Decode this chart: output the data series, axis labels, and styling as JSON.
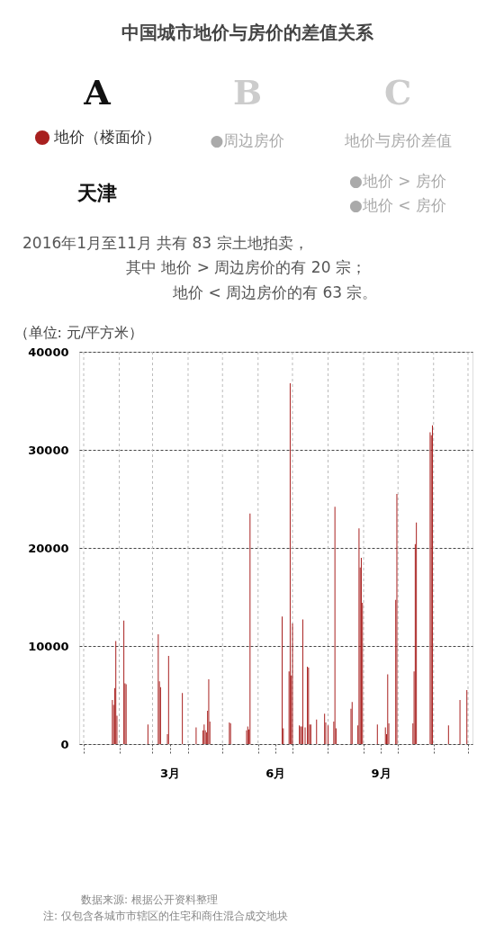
{
  "chart_data": {
    "type": "bar",
    "title": "中国城市地价与房价的差值关系",
    "subtitle": "天津",
    "ylabel": "（单位: 元/平方米）",
    "annotations": [
      "A",
      "B",
      "C",
      "●周边房价",
      "地价与房价差值",
      "●地价 > 房价",
      "●地价 < 房价",
      "2016年1月至11月   共有  83  宗土地拍卖，",
      "其中   地价 > 周边房价的有  20  宗；",
      "地价 < 周边房价的有  63  宗。",
      "数据来源: 根据公开资料整理",
      "注: 仅包含各城市市辖区的住宅和商住混合成交地块"
    ],
    "x": [
      "2016-01-26",
      "2016-01-27",
      "2016-01-28",
      "2016-01-29",
      "2016-01-30",
      "2016-02-05",
      "2016-02-06",
      "2016-02-07",
      "2016-02-26",
      "2016-03-06",
      "2016-03-07",
      "2016-03-08",
      "2016-03-14",
      "2016-03-15",
      "2016-03-27",
      "2016-04-08",
      "2016-04-14",
      "2016-04-15",
      "2016-04-16",
      "2016-04-17",
      "2016-04-18",
      "2016-04-19",
      "2016-04-20",
      "2016-05-07",
      "2016-05-08",
      "2016-05-22",
      "2016-05-23",
      "2016-05-24",
      "2016-05-25",
      "2016-06-22",
      "2016-06-23",
      "2016-06-28",
      "2016-06-29",
      "2016-06-30",
      "2016-07-01",
      "2016-07-07",
      "2016-07-08",
      "2016-07-09",
      "2016-07-10",
      "2016-07-12",
      "2016-07-14",
      "2016-07-15",
      "2016-07-16",
      "2016-07-17",
      "2016-07-22",
      "2016-07-29",
      "2016-07-30",
      "2016-08-01",
      "2016-08-06",
      "2016-08-07",
      "2016-08-08",
      "2016-08-21",
      "2016-08-22",
      "2016-08-27",
      "2016-08-28",
      "2016-08-29",
      "2016-08-30",
      "2016-08-31",
      "2016-09-13",
      "2016-09-20",
      "2016-09-21",
      "2016-09-22",
      "2016-09-23",
      "2016-09-29",
      "2016-09-30",
      "2016-10-14",
      "2016-10-15",
      "2016-10-16",
      "2016-10-17",
      "2016-10-29",
      "2016-10-30",
      "2016-10-31",
      "2016-11-14",
      "2016-11-24",
      "2016-11-30"
    ],
    "series": [
      {
        "name": "地价（楼面价）",
        "color": "#a8201f",
        "values": [
          4500,
          4000,
          5700,
          10500,
          2900,
          12600,
          6200,
          6100,
          2000,
          11200,
          6400,
          5800,
          1000,
          9000,
          5200,
          1700,
          1400,
          2000,
          1400,
          1200,
          3400,
          6600,
          2300,
          2200,
          2100,
          1400,
          1800,
          1500,
          23500,
          13000,
          1600,
          7400,
          36800,
          7000,
          12300,
          1900,
          1800,
          1800,
          12700,
          1700,
          7900,
          7800,
          2000,
          2000,
          2500,
          3100,
          2200,
          1900,
          2300,
          24200,
          1600,
          3600,
          4300,
          1900,
          22000,
          18000,
          19000,
          14400,
          2000,
          1700,
          1000,
          7100,
          2100,
          14700,
          25500,
          2100,
          7400,
          20400,
          22600,
          31800,
          31500,
          32500,
          1900,
          4500,
          5500
        ]
      }
    ],
    "xlim": [
      "2016-01-01",
      "2016-12-01"
    ],
    "xticks": [
      {
        "value": "2016-01-01",
        "label": null
      },
      {
        "value": "2016-02-01",
        "label": null
      },
      {
        "value": "2016-03-01",
        "label": null
      },
      {
        "value": "2016-03-16",
        "label": "3月"
      },
      {
        "value": "2016-04-01",
        "label": null
      },
      {
        "value": "2016-05-01",
        "label": null
      },
      {
        "value": "2016-06-01",
        "label": null
      },
      {
        "value": "2016-06-16",
        "label": "6月"
      },
      {
        "value": "2016-07-01",
        "label": null
      },
      {
        "value": "2016-08-01",
        "label": null
      },
      {
        "value": "2016-09-01",
        "label": null
      },
      {
        "value": "2016-09-16",
        "label": "9月"
      },
      {
        "value": "2016-10-01",
        "label": null
      },
      {
        "value": "2016-11-01",
        "label": null
      },
      {
        "value": "2016-12-01",
        "label": null
      }
    ],
    "ylim": [
      0,
      40000
    ],
    "yticks": [
      0,
      10000,
      20000,
      30000,
      40000
    ],
    "grid": true,
    "legend": "top left"
  }
}
